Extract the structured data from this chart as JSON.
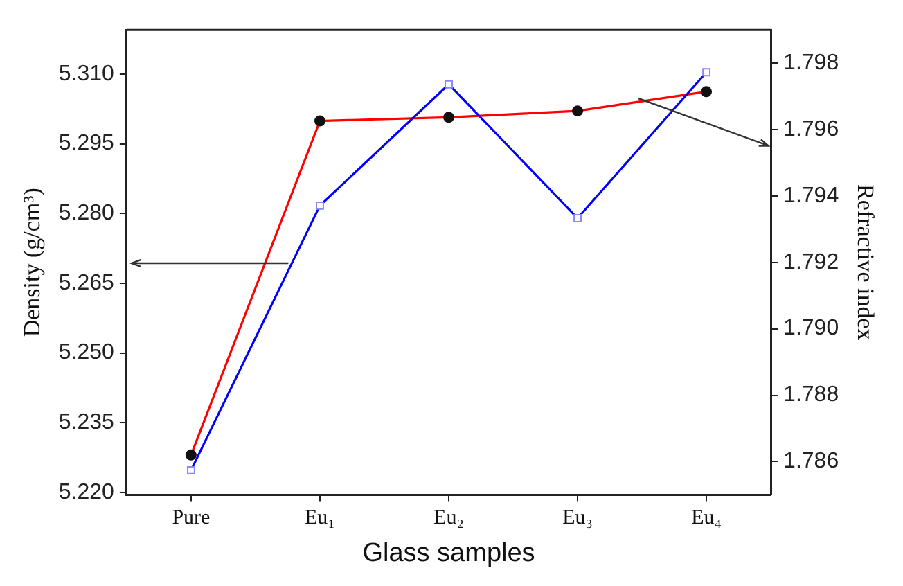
{
  "chart_data": {
    "type": "line",
    "xlabel": "Glass samples",
    "ylabel": "Density (g/cm³)",
    "y2label": "Refractive index",
    "categories": [
      "Pure",
      "Eu₁",
      "Eu₂",
      "Eu₃",
      "Eu₄"
    ],
    "series": [
      {
        "color": "#0000ff",
        "marker": "square",
        "values": [
          5.2248,
          5.2817,
          5.3078,
          5.279,
          5.3104
        ]
      },
      {
        "color": "#ff0000",
        "marker": "circle",
        "axis": "y2",
        "values": [
          1.7862,
          1.79626,
          1.79637,
          1.79656,
          1.79714
        ]
      }
    ],
    "ylim": [
      5.2195,
      5.3195
    ],
    "yticks": [
      {
        "value": 5.22,
        "label": "5.220"
      },
      {
        "value": 5.235,
        "label": "5.235"
      },
      {
        "value": 5.25,
        "label": "5.250"
      },
      {
        "value": 5.265,
        "label": "5.265"
      },
      {
        "value": 5.28,
        "label": "5.280"
      },
      {
        "value": 5.295,
        "label": "5.295"
      },
      {
        "value": 5.31,
        "label": "5.310"
      }
    ],
    "y2lim": [
      1.785,
      1.799
    ],
    "y2ticks": [
      {
        "value": 1.786,
        "label": "1.786"
      },
      {
        "value": 1.788,
        "label": "1.788"
      },
      {
        "value": 1.79,
        "label": "1.790"
      },
      {
        "value": 1.792,
        "label": "1.792"
      },
      {
        "value": 1.794,
        "label": "1.794"
      },
      {
        "value": 1.796,
        "label": "1.796"
      },
      {
        "value": 1.798,
        "label": "1.798"
      }
    ],
    "grid": false,
    "legend": false
  }
}
